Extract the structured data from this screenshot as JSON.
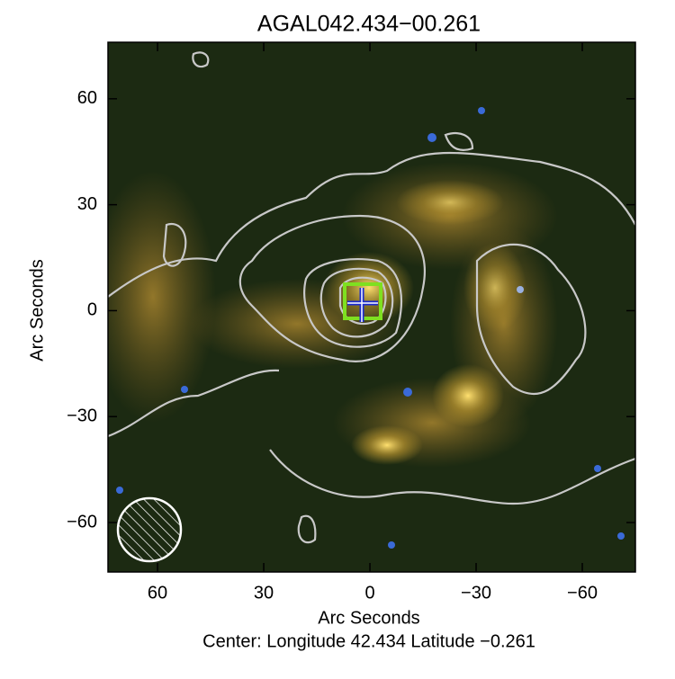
{
  "chart_data": {
    "type": "image",
    "title": "AGAL042.434−00.261",
    "x_label": "Arc Seconds",
    "y_label": "Arc Seconds",
    "subtitle": "Center:  Longitude 42.434 Latitude −0.261",
    "xlim": [
      74,
      -75
    ],
    "ylim": [
      -74,
      76
    ],
    "xticks": [
      60,
      30,
      0,
      {
        "value": -30,
        "label": "−30"
      },
      {
        "value": -60,
        "label": "−60"
      }
    ],
    "yticks": [
      {
        "value": -60,
        "label": "−60"
      },
      {
        "value": -30,
        "label": "−30"
      },
      0,
      30,
      60
    ]
  }
}
